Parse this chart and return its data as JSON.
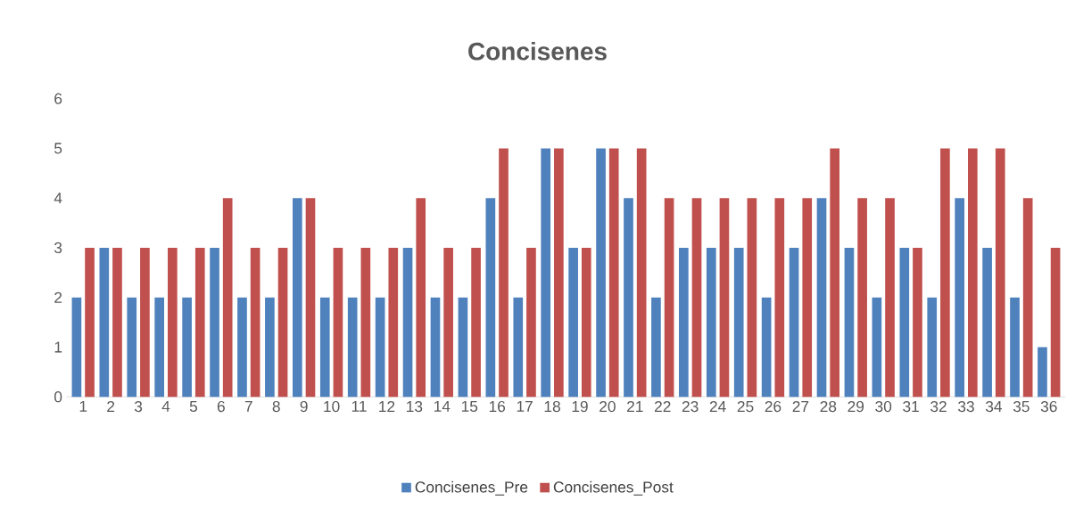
{
  "chart_data": {
    "type": "bar",
    "title": "Concisenes",
    "categories": [
      "1",
      "2",
      "3",
      "4",
      "5",
      "6",
      "7",
      "8",
      "9",
      "10",
      "11",
      "12",
      "13",
      "14",
      "15",
      "16",
      "17",
      "18",
      "19",
      "20",
      "21",
      "22",
      "23",
      "24",
      "25",
      "26",
      "27",
      "28",
      "29",
      "30",
      "31",
      "32",
      "33",
      "34",
      "35",
      "36"
    ],
    "series": [
      {
        "name": "Concisenes_Pre",
        "color": "#4f81bd",
        "values": [
          2,
          3,
          2,
          2,
          2,
          3,
          2,
          2,
          4,
          2,
          2,
          2,
          3,
          2,
          2,
          4,
          2,
          5,
          3,
          5,
          4,
          2,
          3,
          3,
          3,
          2,
          3,
          4,
          3,
          2,
          3,
          2,
          4,
          3,
          2,
          1
        ]
      },
      {
        "name": "Concisenes_Post",
        "color": "#c0504d",
        "values": [
          3,
          3,
          3,
          3,
          3,
          4,
          3,
          3,
          4,
          3,
          3,
          3,
          4,
          3,
          3,
          5,
          3,
          5,
          3,
          5,
          5,
          4,
          4,
          4,
          4,
          4,
          4,
          5,
          4,
          4,
          3,
          5,
          5,
          5,
          4,
          3
        ]
      }
    ],
    "ylim": [
      0,
      6
    ],
    "yticks": [
      0,
      1,
      2,
      3,
      4,
      5,
      6
    ],
    "legend": "bottom"
  }
}
